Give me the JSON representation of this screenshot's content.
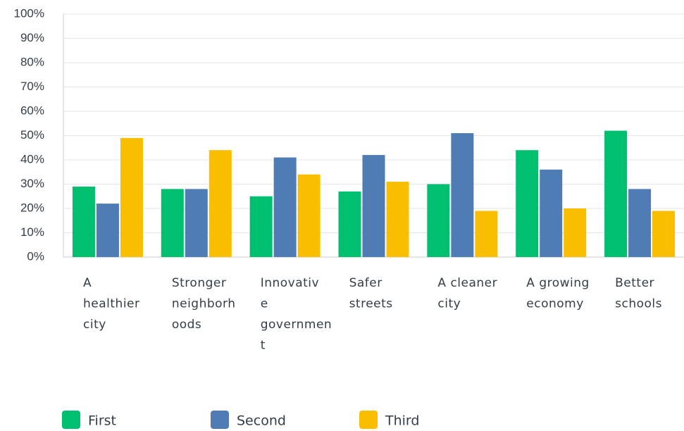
{
  "chart_data": {
    "type": "bar",
    "categories": [
      "A healthier city",
      "Stronger neighborhoods",
      "Innovative government",
      "Safer streets",
      "A cleaner city",
      "A growing economy",
      "Better schools"
    ],
    "series": [
      {
        "name": "First",
        "color": "#00bf6f",
        "values": [
          29,
          28,
          25,
          27,
          30,
          44,
          52
        ]
      },
      {
        "name": "Second",
        "color": "#507cb6",
        "values": [
          22,
          28,
          41,
          42,
          51,
          36,
          28
        ]
      },
      {
        "name": "Third",
        "color": "#f9be00",
        "values": [
          49,
          44,
          34,
          31,
          19,
          20,
          19
        ]
      }
    ],
    "ylim": [
      0,
      100
    ],
    "yticks": [
      {
        "value": 0,
        "label": "0%"
      },
      {
        "value": 10,
        "label": "10%"
      },
      {
        "value": 20,
        "label": "20%"
      },
      {
        "value": 30,
        "label": "30%"
      },
      {
        "value": 40,
        "label": "40%"
      },
      {
        "value": 50,
        "label": "50%"
      },
      {
        "value": 60,
        "label": "60%"
      },
      {
        "value": 70,
        "label": "70%"
      },
      {
        "value": 80,
        "label": "80%"
      },
      {
        "value": 90,
        "label": "90%"
      },
      {
        "value": 100,
        "label": "100%"
      }
    ],
    "grid": true,
    "legend": "bottom"
  }
}
